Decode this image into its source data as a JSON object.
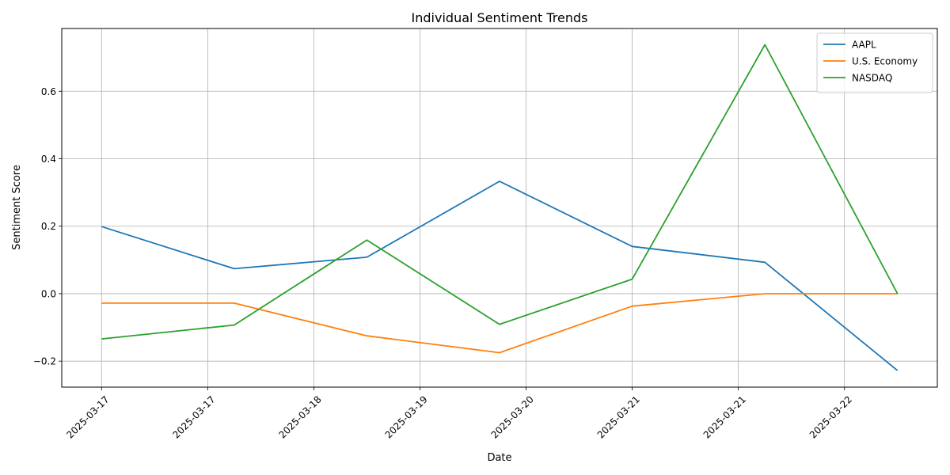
{
  "chart_data": {
    "type": "line",
    "title": "Individual Sentiment Trends",
    "xlabel": "Date",
    "ylabel": "Sentiment Score",
    "x": [
      0,
      1,
      2,
      3,
      4,
      5,
      6
    ],
    "x_ticks": [
      {
        "pos": 0.0,
        "label": "2025-03-17"
      },
      {
        "pos": 0.8,
        "label": "2025-03-17"
      },
      {
        "pos": 1.6,
        "label": "2025-03-18"
      },
      {
        "pos": 2.4,
        "label": "2025-03-19"
      },
      {
        "pos": 3.2,
        "label": "2025-03-20"
      },
      {
        "pos": 4.0,
        "label": "2025-03-21"
      },
      {
        "pos": 4.8,
        "label": "2025-03-21"
      },
      {
        "pos": 5.6,
        "label": "2025-03-22"
      }
    ],
    "y_ticks": [
      {
        "value": -0.2,
        "label": "−0.2"
      },
      {
        "value": 0.0,
        "label": "0.0"
      },
      {
        "value": 0.2,
        "label": "0.2"
      },
      {
        "value": 0.4,
        "label": "0.4"
      },
      {
        "value": 0.6,
        "label": "0.6"
      }
    ],
    "xlim": [
      -0.3,
      6.3
    ],
    "ylim": [
      -0.277,
      0.786
    ],
    "grid": true,
    "legend_position": "top-right",
    "series": [
      {
        "name": "AAPL",
        "color": "#1f77b4",
        "values": [
          0.199,
          0.074,
          0.108,
          0.333,
          0.14,
          0.093,
          -0.228
        ]
      },
      {
        "name": "U.S. Economy",
        "color": "#ff7f0e",
        "values": [
          -0.028,
          -0.028,
          -0.125,
          -0.175,
          -0.037,
          0.0,
          0.0
        ]
      },
      {
        "name": "NASDAQ",
        "color": "#2ca02c",
        "values": [
          -0.134,
          -0.093,
          0.159,
          -0.091,
          0.043,
          0.738,
          0.0
        ]
      }
    ]
  }
}
